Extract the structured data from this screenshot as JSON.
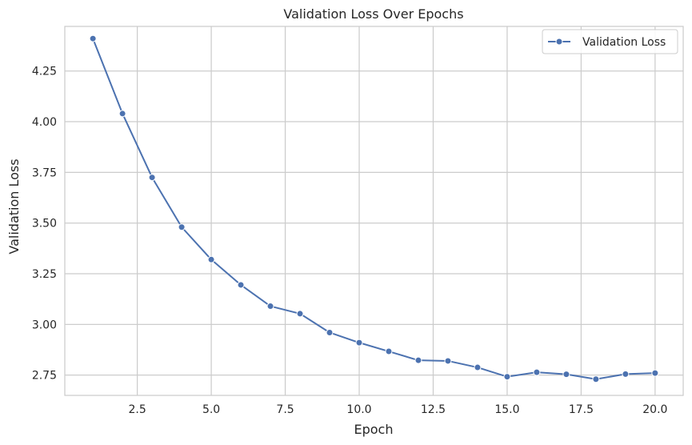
{
  "chart_data": {
    "type": "line",
    "title": "Validation Loss Over Epochs",
    "xlabel": "Epoch",
    "ylabel": "Validation Loss",
    "xlim": [
      0.05,
      20.95
    ],
    "ylim": [
      2.65,
      4.47
    ],
    "xticks": [
      2.5,
      5.0,
      7.5,
      10.0,
      12.5,
      15.0,
      17.5,
      20.0
    ],
    "xtick_labels": [
      "2.5",
      "5.0",
      "7.5",
      "10.0",
      "12.5",
      "15.0",
      "17.5",
      "20.0"
    ],
    "yticks": [
      2.75,
      3.0,
      3.25,
      3.5,
      3.75,
      4.0,
      4.25
    ],
    "ytick_labels": [
      "2.75",
      "3.00",
      "3.25",
      "3.50",
      "3.75",
      "4.00",
      "4.25"
    ],
    "grid": true,
    "legend_position": "top-right",
    "series": [
      {
        "name": "Validation Loss",
        "color": "#4c72b0",
        "marker": "circle",
        "x": [
          1,
          2,
          3,
          4,
          5,
          6,
          7,
          8,
          9,
          10,
          11,
          12,
          13,
          14,
          15,
          16,
          17,
          18,
          19,
          20
        ],
        "y": [
          4.41,
          4.04,
          3.725,
          3.48,
          3.32,
          3.195,
          3.09,
          3.053,
          2.96,
          2.91,
          2.867,
          2.823,
          2.82,
          2.788,
          2.742,
          2.764,
          2.754,
          2.73,
          2.755,
          2.76
        ]
      }
    ]
  }
}
